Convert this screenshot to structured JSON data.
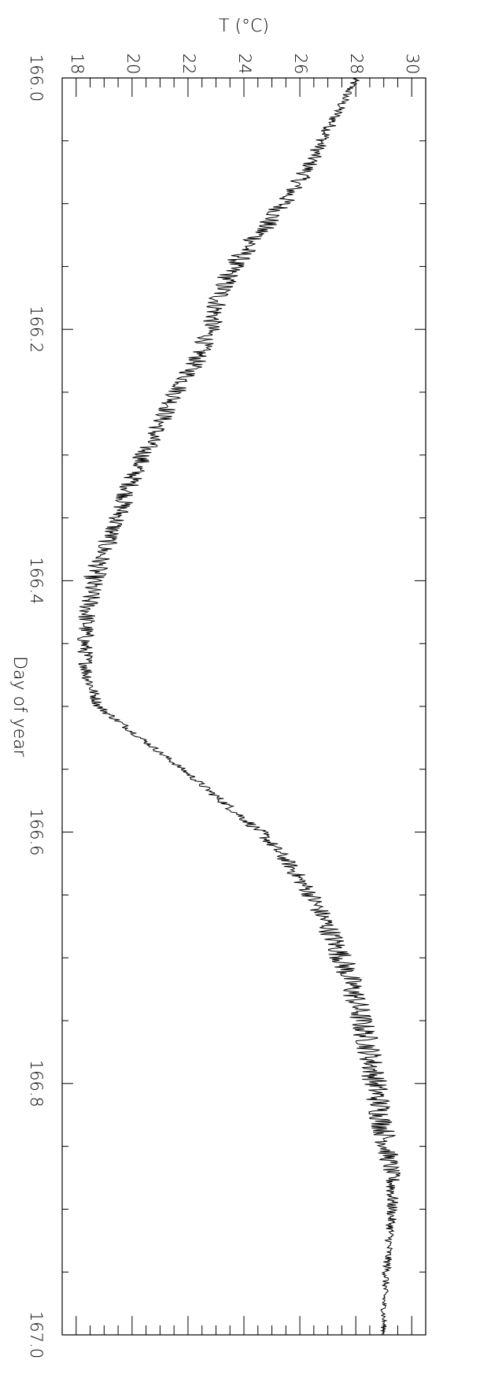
{
  "chart_data": {
    "type": "line",
    "orientation": "rotated 90 degrees clockwise: Day of year runs top to bottom, T increases left to right",
    "xlabel": "Day of year",
    "ylabel": "T (°C)",
    "xlim": [
      166.0,
      167.0
    ],
    "ylim": [
      17.5,
      30.5
    ],
    "x_ticks": [
      "166.0",
      "166.2",
      "166.4",
      "166.6",
      "166.8",
      "167.0"
    ],
    "y_ticks": [
      "18",
      "20",
      "22",
      "24",
      "26",
      "28",
      "30"
    ],
    "grid": false,
    "legend": "none",
    "line_color": "#000000",
    "series": [
      {
        "x": [
          166.0,
          166.025,
          166.05,
          166.075,
          166.1,
          166.125,
          166.15,
          166.175,
          166.2,
          166.225,
          166.25,
          166.275,
          166.3,
          166.325,
          166.35,
          166.375,
          166.4,
          166.425,
          166.45,
          166.475,
          166.5,
          166.525,
          166.55,
          166.575,
          166.6,
          166.625,
          166.65,
          166.675,
          166.7,
          166.725,
          166.75,
          166.775,
          166.8,
          166.825,
          166.85,
          166.875,
          166.9,
          166.925,
          166.95,
          166.975,
          167.0
        ],
        "values": [
          28.0,
          27.4,
          26.8,
          26.2,
          25.4,
          24.5,
          23.6,
          23.1,
          22.8,
          22.3,
          21.6,
          21.0,
          20.4,
          19.9,
          19.5,
          19.0,
          18.6,
          18.4,
          18.3,
          18.4,
          18.8,
          20.3,
          21.8,
          23.2,
          24.6,
          25.6,
          26.4,
          27.0,
          27.5,
          27.9,
          28.2,
          28.5,
          28.7,
          28.9,
          29.1,
          29.3,
          29.3,
          29.2,
          29.1,
          29.0,
          29.0
        ],
        "noise": [
          0.15,
          0.2,
          0.25,
          0.3,
          0.35,
          0.4,
          0.4,
          0.4,
          0.35,
          0.35,
          0.35,
          0.35,
          0.35,
          0.35,
          0.35,
          0.35,
          0.4,
          0.35,
          0.3,
          0.25,
          0.2,
          0.15,
          0.15,
          0.2,
          0.25,
          0.3,
          0.35,
          0.4,
          0.45,
          0.45,
          0.45,
          0.45,
          0.45,
          0.45,
          0.4,
          0.3,
          0.2,
          0.15,
          0.15,
          0.1,
          0.1
        ]
      }
    ]
  }
}
